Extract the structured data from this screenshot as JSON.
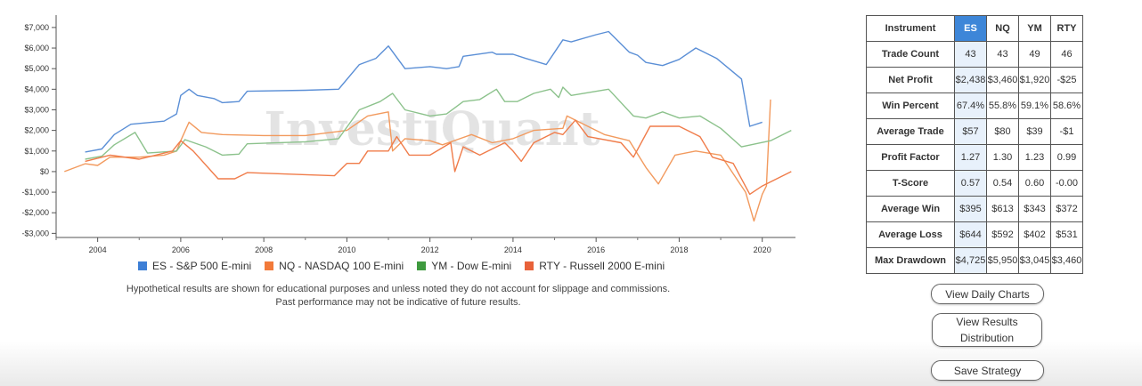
{
  "chart_data": {
    "type": "line",
    "watermark": "InvestiQuant",
    "xlim": [
      2003.0,
      2020.8
    ],
    "ylim": [
      -3200,
      7600
    ],
    "x_ticks": [
      2004,
      2006,
      2008,
      2010,
      2012,
      2014,
      2016,
      2018,
      2020
    ],
    "y_ticks": [
      7000,
      6000,
      5000,
      4000,
      3000,
      2000,
      1000,
      0,
      -1000,
      -2000,
      -3000
    ],
    "y_tick_labels": [
      "$7,000",
      "$6,000",
      "$5,000",
      "$4,000",
      "$3,000",
      "$2,000",
      "$1,000",
      "$0",
      "-$1,000",
      "-$2,000",
      "-$3,000"
    ],
    "series": [
      {
        "name": "ES - S&P 500 E-mini",
        "color": "#5b8fd6",
        "points": [
          [
            2003.7,
            950
          ],
          [
            2004.1,
            1100
          ],
          [
            2004.4,
            1800
          ],
          [
            2004.8,
            2300
          ],
          [
            2005.6,
            2450
          ],
          [
            2005.9,
            2800
          ],
          [
            2006.0,
            3700
          ],
          [
            2006.2,
            4000
          ],
          [
            2006.4,
            3700
          ],
          [
            2006.8,
            3550
          ],
          [
            2007.0,
            3350
          ],
          [
            2007.4,
            3400
          ],
          [
            2007.6,
            3900
          ],
          [
            2009.0,
            3950
          ],
          [
            2009.8,
            4000
          ],
          [
            2010.3,
            5200
          ],
          [
            2010.7,
            5500
          ],
          [
            2011.0,
            6100
          ],
          [
            2011.4,
            5000
          ],
          [
            2012.0,
            5100
          ],
          [
            2012.4,
            5000
          ],
          [
            2012.7,
            5100
          ],
          [
            2012.8,
            5600
          ],
          [
            2013.5,
            5800
          ],
          [
            2013.6,
            5700
          ],
          [
            2014.0,
            5700
          ],
          [
            2014.3,
            5500
          ],
          [
            2014.8,
            5200
          ],
          [
            2015.0,
            5800
          ],
          [
            2015.2,
            6400
          ],
          [
            2015.4,
            6300
          ],
          [
            2016.0,
            6650
          ],
          [
            2016.3,
            6800
          ],
          [
            2016.8,
            5800
          ],
          [
            2017.0,
            5650
          ],
          [
            2017.2,
            5300
          ],
          [
            2017.6,
            5150
          ],
          [
            2018.0,
            5450
          ],
          [
            2018.4,
            6000
          ],
          [
            2018.9,
            5500
          ],
          [
            2019.5,
            4500
          ],
          [
            2019.7,
            2200
          ],
          [
            2020.0,
            2400
          ]
        ]
      },
      {
        "name": "NQ - NASDAQ 100 E-mini",
        "color": "#f29a5e",
        "points": [
          [
            2003.2,
            0
          ],
          [
            2003.7,
            380
          ],
          [
            2004.0,
            300
          ],
          [
            2004.3,
            700
          ],
          [
            2005.0,
            700
          ],
          [
            2005.6,
            800
          ],
          [
            2005.9,
            1000
          ],
          [
            2006.0,
            1500
          ],
          [
            2006.2,
            2400
          ],
          [
            2006.5,
            1900
          ],
          [
            2007.0,
            1800
          ],
          [
            2008.0,
            1750
          ],
          [
            2009.0,
            1750
          ],
          [
            2010.0,
            2000
          ],
          [
            2010.5,
            2700
          ],
          [
            2011.0,
            2900
          ],
          [
            2011.1,
            1000
          ],
          [
            2011.4,
            1600
          ],
          [
            2012.0,
            1500
          ],
          [
            2012.3,
            1300
          ],
          [
            2013.0,
            1800
          ],
          [
            2013.5,
            1400
          ],
          [
            2014.0,
            1600
          ],
          [
            2014.5,
            2000
          ],
          [
            2015.2,
            2100
          ],
          [
            2015.3,
            2700
          ],
          [
            2015.6,
            2400
          ],
          [
            2016.2,
            1800
          ],
          [
            2016.8,
            1500
          ],
          [
            2017.2,
            200
          ],
          [
            2017.5,
            -600
          ],
          [
            2017.9,
            800
          ],
          [
            2018.4,
            1000
          ],
          [
            2019.0,
            800
          ],
          [
            2019.6,
            -1000
          ],
          [
            2019.8,
            -2400
          ],
          [
            2020.0,
            -1100
          ],
          [
            2020.1,
            -700
          ],
          [
            2020.2,
            3500
          ]
        ]
      },
      {
        "name": "YM - Dow E-mini",
        "color": "#8cc28c",
        "points": [
          [
            2003.7,
            600
          ],
          [
            2004.1,
            750
          ],
          [
            2004.4,
            1300
          ],
          [
            2004.9,
            1900
          ],
          [
            2005.2,
            900
          ],
          [
            2005.9,
            1000
          ],
          [
            2006.1,
            1550
          ],
          [
            2006.6,
            1200
          ],
          [
            2007.0,
            800
          ],
          [
            2007.4,
            850
          ],
          [
            2007.6,
            1350
          ],
          [
            2009.0,
            1450
          ],
          [
            2009.8,
            1600
          ],
          [
            2010.3,
            3000
          ],
          [
            2010.8,
            3400
          ],
          [
            2011.1,
            3800
          ],
          [
            2011.4,
            3000
          ],
          [
            2012.0,
            2700
          ],
          [
            2012.4,
            2800
          ],
          [
            2012.8,
            3400
          ],
          [
            2013.2,
            3500
          ],
          [
            2013.6,
            4000
          ],
          [
            2013.8,
            3400
          ],
          [
            2014.1,
            3400
          ],
          [
            2014.5,
            3800
          ],
          [
            2014.9,
            4000
          ],
          [
            2015.1,
            3600
          ],
          [
            2015.2,
            4100
          ],
          [
            2015.4,
            3700
          ],
          [
            2016.3,
            4000
          ],
          [
            2016.9,
            2700
          ],
          [
            2017.2,
            2600
          ],
          [
            2017.6,
            2900
          ],
          [
            2018.0,
            2600
          ],
          [
            2018.5,
            2700
          ],
          [
            2019.0,
            2100
          ],
          [
            2019.5,
            1200
          ],
          [
            2020.2,
            1500
          ],
          [
            2020.7,
            2000
          ]
        ]
      },
      {
        "name": "RTY - Russell 2000 E-mini",
        "color": "#f07c4a",
        "points": [
          [
            2003.7,
            500
          ],
          [
            2004.3,
            800
          ],
          [
            2005.0,
            600
          ],
          [
            2005.8,
            1000
          ],
          [
            2006.0,
            1500
          ],
          [
            2006.3,
            1000
          ],
          [
            2006.9,
            -350
          ],
          [
            2007.3,
            -350
          ],
          [
            2007.6,
            -50
          ],
          [
            2009.0,
            -150
          ],
          [
            2009.7,
            -200
          ],
          [
            2010.0,
            400
          ],
          [
            2010.3,
            400
          ],
          [
            2010.5,
            1000
          ],
          [
            2011.0,
            1000
          ],
          [
            2011.2,
            1700
          ],
          [
            2011.5,
            800
          ],
          [
            2012.0,
            800
          ],
          [
            2012.5,
            1400
          ],
          [
            2012.6,
            0
          ],
          [
            2012.8,
            1200
          ],
          [
            2013.2,
            800
          ],
          [
            2013.8,
            1400
          ],
          [
            2014.0,
            1000
          ],
          [
            2014.2,
            500
          ],
          [
            2014.5,
            1400
          ],
          [
            2015.0,
            1900
          ],
          [
            2015.2,
            1800
          ],
          [
            2015.5,
            2500
          ],
          [
            2015.8,
            1700
          ],
          [
            2016.6,
            1400
          ],
          [
            2016.9,
            700
          ],
          [
            2017.3,
            2200
          ],
          [
            2018.0,
            2200
          ],
          [
            2018.5,
            1700
          ],
          [
            2018.8,
            700
          ],
          [
            2019.3,
            400
          ],
          [
            2019.7,
            -1100
          ],
          [
            2020.0,
            -700
          ],
          [
            2020.7,
            0
          ]
        ]
      }
    ]
  },
  "disclaimer": {
    "line1": "Hypothetical results are shown for educational purposes and unless noted they do not account for slippage and commissions.",
    "line2": "Past performance may not be indicative of future results."
  },
  "table": {
    "header": [
      "Instrument",
      "ES",
      "NQ",
      "YM",
      "RTY"
    ],
    "rows": [
      {
        "label": "Trade Count",
        "values": [
          "43",
          "43",
          "49",
          "46"
        ]
      },
      {
        "label": "Net Profit",
        "values": [
          "$2,438",
          "$3,460",
          "$1,920",
          "-$25"
        ]
      },
      {
        "label": "Win Percent",
        "values": [
          "67.4%",
          "55.8%",
          "59.1%",
          "58.6%"
        ]
      },
      {
        "label": "Average Trade",
        "values": [
          "$57",
          "$80",
          "$39",
          "-$1"
        ]
      },
      {
        "label": "Profit Factor",
        "values": [
          "1.27",
          "1.30",
          "1.23",
          "0.99"
        ]
      },
      {
        "label": "T-Score",
        "values": [
          "0.57",
          "0.54",
          "0.60",
          "-0.00"
        ]
      },
      {
        "label": "Average Win",
        "values": [
          "$395",
          "$613",
          "$343",
          "$372"
        ]
      },
      {
        "label": "Average Loss",
        "values": [
          "$644",
          "$592",
          "$402",
          "$531"
        ]
      },
      {
        "label": "Max Drawdown",
        "values": [
          "$4,725",
          "$5,950",
          "$3,045",
          "$3,460"
        ]
      }
    ]
  },
  "buttons": {
    "daily_charts": "View Daily Charts",
    "results_distribution": "View Results Distribution",
    "save_strategy": "Save Strategy"
  }
}
